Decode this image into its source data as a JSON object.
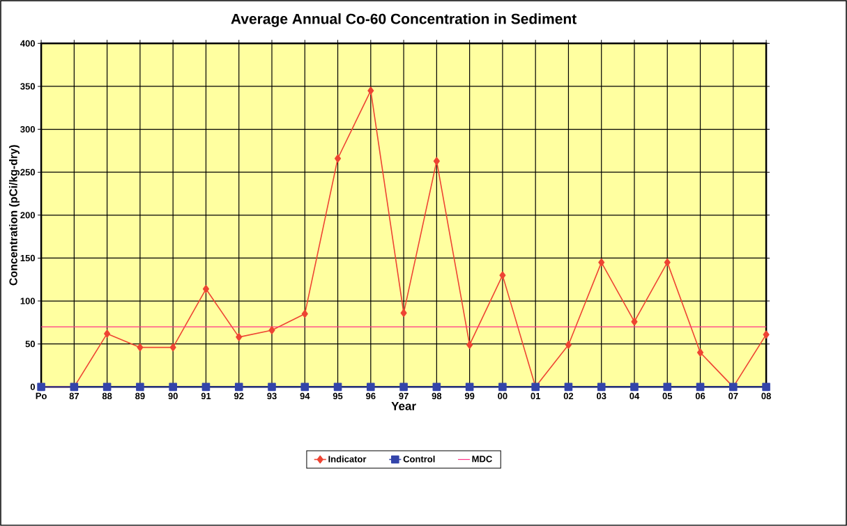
{
  "chart_data": {
    "type": "line",
    "title": "Average Annual Co-60 Concentration in Sediment",
    "xlabel": "Year",
    "ylabel": "Concentration (pCi/kg-dry)",
    "categories": [
      "Po",
      "87",
      "88",
      "89",
      "90",
      "91",
      "92",
      "93",
      "94",
      "95",
      "96",
      "97",
      "98",
      "99",
      "00",
      "01",
      "02",
      "03",
      "04",
      "05",
      "06",
      "07",
      "08"
    ],
    "series": [
      {
        "name": "Indicator",
        "color": "#ee4433",
        "marker": "diamond",
        "values": [
          0,
          0,
          62,
          46,
          46,
          114,
          58,
          66,
          85,
          266,
          345,
          86,
          263,
          49,
          130,
          0,
          49,
          145,
          76,
          145,
          40,
          0,
          61
        ]
      },
      {
        "name": "Control",
        "color": "#3344aa",
        "marker": "square",
        "values": [
          0,
          0,
          0,
          0,
          0,
          0,
          0,
          0,
          0,
          0,
          0,
          0,
          0,
          0,
          0,
          0,
          0,
          0,
          0,
          0,
          0,
          0,
          0
        ]
      }
    ],
    "ref_lines": [
      {
        "axis": "y",
        "value": 70,
        "label": "MDC",
        "color": "#ff3388"
      }
    ],
    "ylim": [
      0,
      400
    ],
    "yticks": [
      0,
      50,
      100,
      150,
      200,
      250,
      300,
      350,
      400
    ],
    "grid": true,
    "legend": "bottom",
    "line_style": "solid"
  }
}
